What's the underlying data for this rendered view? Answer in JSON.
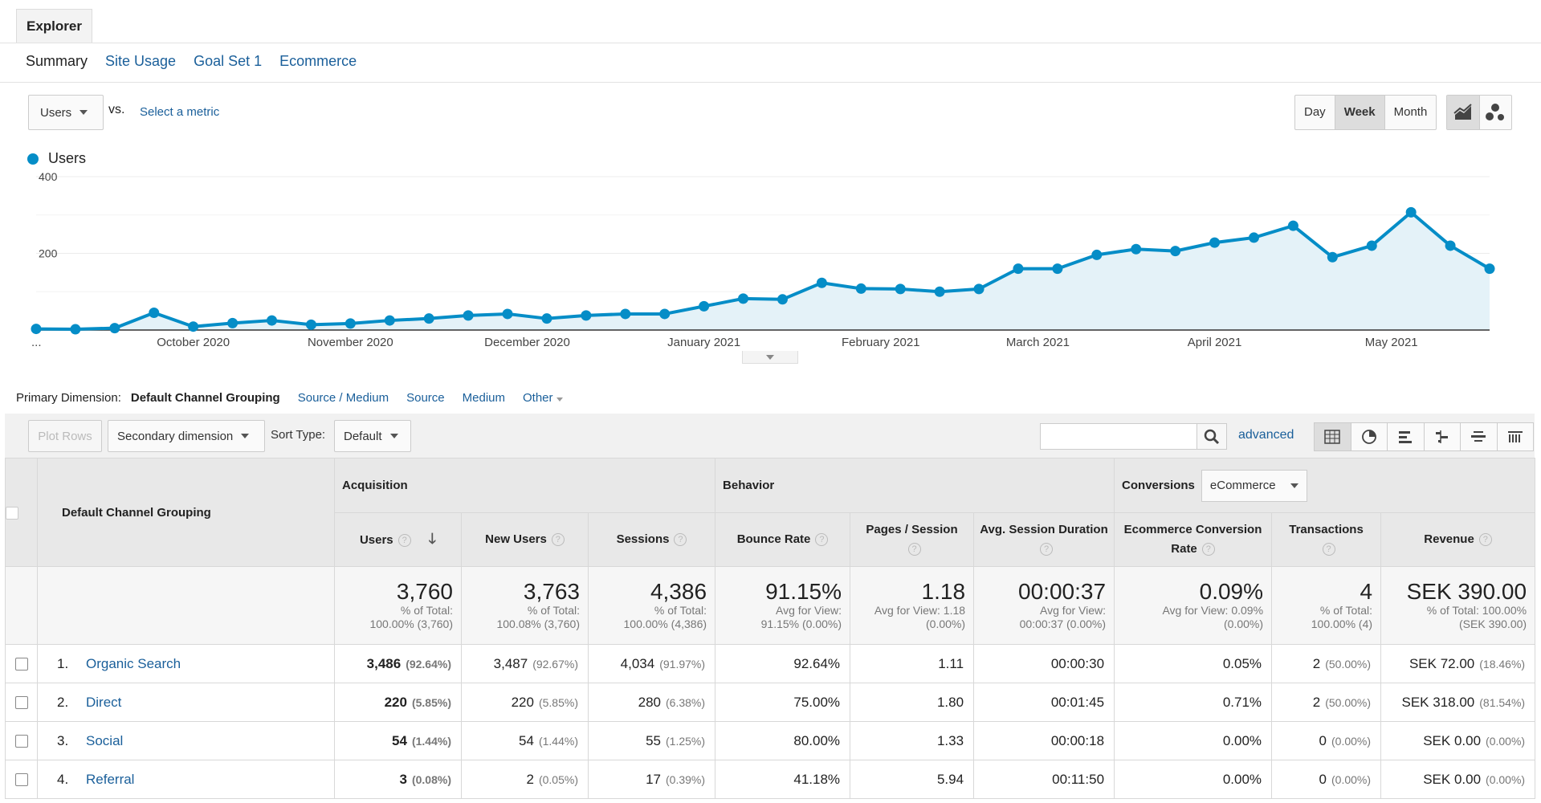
{
  "explorer_tab": "Explorer",
  "subtabs": [
    "Summary",
    "Site Usage",
    "Goal Set 1",
    "Ecommerce"
  ],
  "metric_select": "Users",
  "vs_label": "vs.",
  "select_metric": "Select a metric",
  "periods": [
    "Day",
    "Week",
    "Month"
  ],
  "legend_label": "Users",
  "colors": {
    "series": "#058dc7",
    "area": "#e4f2f8",
    "link": "#1a5f9a"
  },
  "chart_data": {
    "type": "area",
    "series": [
      {
        "name": "Users",
        "values": [
          3,
          2,
          5,
          45,
          9,
          18,
          25,
          14,
          17,
          25,
          30,
          38,
          42,
          30,
          38,
          42,
          42,
          62,
          82,
          80,
          123,
          108,
          107,
          100,
          107,
          160,
          160,
          196,
          211,
          206,
          228,
          241,
          272,
          190,
          220,
          307,
          220,
          160
        ]
      }
    ],
    "x_tick_labels": [
      "...",
      "October 2020",
      "November 2020",
      "December 2020",
      "January 2021",
      "February 2021",
      "March 2021",
      "April 2021",
      "May 2021"
    ],
    "y_tick_labels": [
      "400",
      "200"
    ],
    "ylim": [
      0,
      400
    ],
    "grid": true
  },
  "primary_dimension": {
    "label": "Primary Dimension:",
    "active": "Default Channel Grouping",
    "options": [
      "Source / Medium",
      "Source",
      "Medium",
      "Other"
    ]
  },
  "toolbar": {
    "plot_rows": "Plot Rows",
    "secondary_dimension": "Secondary dimension",
    "sort_type_label": "Sort Type:",
    "sort_type_value": "Default",
    "search_value": "",
    "advanced": "advanced"
  },
  "table": {
    "dim_header": "Default Channel Grouping",
    "groups": {
      "acquisition": "Acquisition",
      "behavior": "Behavior",
      "conversions": "Conversions",
      "conversions_select": "eCommerce"
    },
    "columns": [
      "Users",
      "New Users",
      "Sessions",
      "Bounce Rate",
      "Pages / Session",
      "Avg. Session Duration",
      "Ecommerce Conversion Rate",
      "Transactions",
      "Revenue"
    ],
    "totals": [
      {
        "value": "3,760",
        "line1": "% of Total:",
        "line2": "100.00% (3,760)"
      },
      {
        "value": "3,763",
        "line1": "% of Total:",
        "line2": "100.08% (3,760)"
      },
      {
        "value": "4,386",
        "line1": "% of Total:",
        "line2": "100.00% (4,386)"
      },
      {
        "value": "91.15%",
        "line1": "Avg for View:",
        "line2": "91.15% (0.00%)"
      },
      {
        "value": "1.18",
        "line1": "Avg for View: 1.18",
        "line2": "(0.00%)"
      },
      {
        "value": "00:00:37",
        "line1": "Avg for View:",
        "line2": "00:00:37 (0.00%)"
      },
      {
        "value": "0.09%",
        "line1": "Avg for View: 0.09%",
        "line2": "(0.00%)"
      },
      {
        "value": "4",
        "line1": "% of Total:",
        "line2": "100.00% (4)"
      },
      {
        "value": "SEK 390.00",
        "line1": "% of Total: 100.00%",
        "line2": "(SEK 390.00)"
      }
    ],
    "rows": [
      {
        "num": "1.",
        "name": "Organic Search",
        "users": "3,486",
        "users_pct": "(92.64%)",
        "new_users": "3,487",
        "new_users_pct": "(92.67%)",
        "sessions": "4,034",
        "sessions_pct": "(91.97%)",
        "bounce": "92.64%",
        "pages": "1.11",
        "duration": "00:00:30",
        "conv_rate": "0.05%",
        "transactions": "2",
        "transactions_pct": "(50.00%)",
        "revenue": "SEK 72.00",
        "revenue_pct": "(18.46%)"
      },
      {
        "num": "2.",
        "name": "Direct",
        "users": "220",
        "users_pct": "(5.85%)",
        "new_users": "220",
        "new_users_pct": "(5.85%)",
        "sessions": "280",
        "sessions_pct": "(6.38%)",
        "bounce": "75.00%",
        "pages": "1.80",
        "duration": "00:01:45",
        "conv_rate": "0.71%",
        "transactions": "2",
        "transactions_pct": "(50.00%)",
        "revenue": "SEK 318.00",
        "revenue_pct": "(81.54%)"
      },
      {
        "num": "3.",
        "name": "Social",
        "users": "54",
        "users_pct": "(1.44%)",
        "new_users": "54",
        "new_users_pct": "(1.44%)",
        "sessions": "55",
        "sessions_pct": "(1.25%)",
        "bounce": "80.00%",
        "pages": "1.33",
        "duration": "00:00:18",
        "conv_rate": "0.00%",
        "transactions": "0",
        "transactions_pct": "(0.00%)",
        "revenue": "SEK 0.00",
        "revenue_pct": "(0.00%)"
      },
      {
        "num": "4.",
        "name": "Referral",
        "users": "3",
        "users_pct": "(0.08%)",
        "new_users": "2",
        "new_users_pct": "(0.05%)",
        "sessions": "17",
        "sessions_pct": "(0.39%)",
        "bounce": "41.18%",
        "pages": "5.94",
        "duration": "00:11:50",
        "conv_rate": "0.00%",
        "transactions": "0",
        "transactions_pct": "(0.00%)",
        "revenue": "SEK 0.00",
        "revenue_pct": "(0.00%)"
      }
    ]
  }
}
